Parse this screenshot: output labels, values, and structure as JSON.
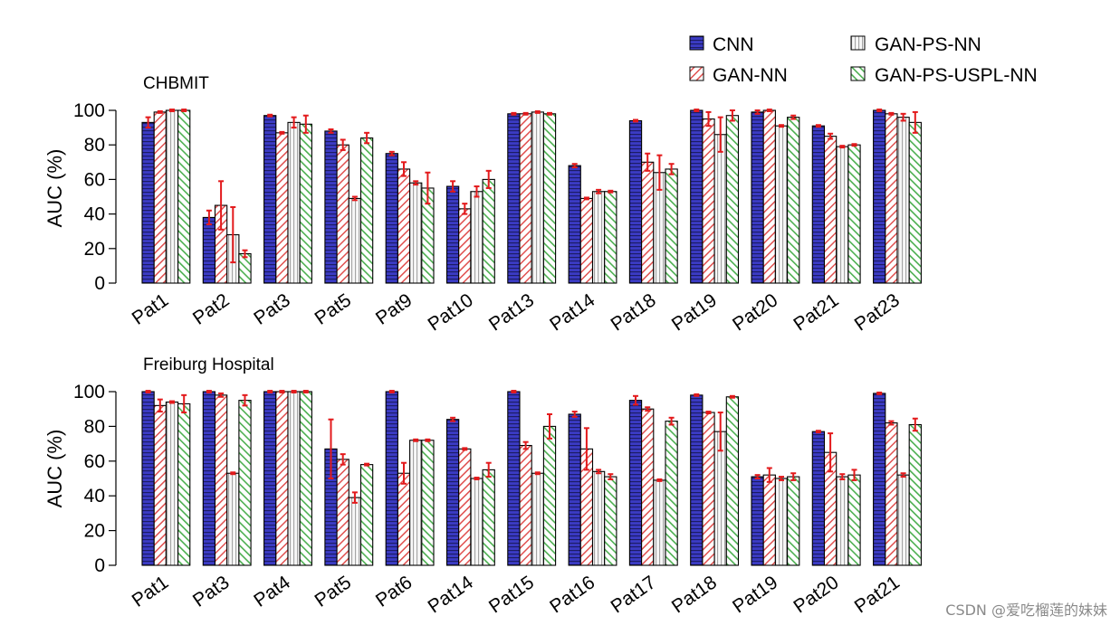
{
  "legend": [
    {
      "label": "CNN",
      "pattern": "cnn"
    },
    {
      "label": "GAN-NN",
      "pattern": "gan"
    },
    {
      "label": "GAN-PS-NN",
      "pattern": "ganps"
    },
    {
      "label": "GAN-PS-USPL-NN",
      "pattern": "uspl"
    }
  ],
  "colors": {
    "cnn": "#3b3bc4",
    "gan": "#e87a7a",
    "ganps": "#f2f2f2",
    "uspl": "#78cc78",
    "error_bar": "#e31a1c"
  },
  "watermark": "CSDN @爱吃榴莲的妹妹",
  "chart_data": [
    {
      "type": "bar",
      "title": "CHBMIT",
      "ylabel": "AUC (%)",
      "ylim": [
        0,
        100
      ],
      "yticks": [
        0,
        20,
        40,
        60,
        80,
        100
      ],
      "categories": [
        "Pat1",
        "Pat2",
        "Pat3",
        "Pat5",
        "Pat9",
        "Pat10",
        "Pat13",
        "Pat14",
        "Pat18",
        "Pat19",
        "Pat20",
        "Pat21",
        "Pat23"
      ],
      "series": [
        {
          "name": "CNN",
          "values": [
            93,
            38,
            97,
            88,
            75,
            56,
            98,
            68,
            94,
            100,
            99,
            91,
            100
          ],
          "errors": [
            3,
            4,
            0.5,
            1,
            1,
            3,
            0.5,
            1,
            0.5,
            0.5,
            1,
            0.5,
            0.5
          ]
        },
        {
          "name": "GAN-NN",
          "values": [
            99,
            45,
            87,
            80,
            66,
            43,
            98,
            49,
            70,
            95,
            100,
            85,
            98
          ],
          "errors": [
            0.5,
            14,
            0.5,
            3,
            4,
            3,
            0.5,
            0.5,
            5,
            4,
            0.5,
            1.5,
            0.5
          ]
        },
        {
          "name": "GAN-PS-NN",
          "values": [
            100,
            28,
            93,
            49,
            58,
            53,
            99,
            53,
            64,
            86,
            91,
            79,
            96
          ],
          "errors": [
            0.5,
            16,
            3,
            1,
            1,
            3,
            0.5,
            1,
            10,
            10,
            0.5,
            0.5,
            2
          ]
        },
        {
          "name": "GAN-PS-USPL-NN",
          "values": [
            100,
            17,
            92,
            84,
            55,
            60,
            98,
            53,
            66,
            97,
            96,
            80,
            93
          ],
          "errors": [
            0.5,
            2,
            5,
            3,
            9,
            5,
            0.5,
            0.5,
            3,
            3,
            1,
            0.5,
            6
          ]
        }
      ]
    },
    {
      "type": "bar",
      "title": "Freiburg Hospital",
      "ylabel": "AUC (%)",
      "ylim": [
        0,
        100
      ],
      "yticks": [
        0,
        20,
        40,
        60,
        80,
        100
      ],
      "categories": [
        "Pat1",
        "Pat3",
        "Pat4",
        "Pat5",
        "Pat6",
        "Pat14",
        "Pat15",
        "Pat16",
        "Pat17",
        "Pat18",
        "Pat19",
        "Pat20",
        "Pat21"
      ],
      "series": [
        {
          "name": "CNN",
          "values": [
            100,
            100,
            100,
            67,
            100,
            84,
            100,
            87,
            95,
            98,
            51,
            77,
            99
          ],
          "errors": [
            0.5,
            0.5,
            0.5,
            17,
            0.5,
            1,
            0.5,
            1.5,
            2.5,
            0.5,
            1,
            0.5,
            0.5
          ]
        },
        {
          "name": "GAN-NN",
          "values": [
            92,
            98,
            100,
            61,
            53,
            67,
            69,
            67,
            90,
            88,
            52,
            65,
            82
          ],
          "errors": [
            3.5,
            1,
            0.5,
            3,
            6,
            0.5,
            2,
            12,
            1,
            0.5,
            4,
            11,
            1
          ]
        },
        {
          "name": "GAN-PS-NN",
          "values": [
            94,
            53,
            100,
            39,
            72,
            50,
            53,
            54,
            49,
            77,
            50,
            51,
            52
          ],
          "errors": [
            0.5,
            0.5,
            0.5,
            3,
            0.5,
            0.5,
            0.5,
            1,
            0.5,
            11,
            1,
            1.5,
            1
          ]
        },
        {
          "name": "GAN-PS-USPL-NN",
          "values": [
            93,
            95,
            100,
            58,
            72,
            55,
            80,
            51,
            83,
            97,
            51,
            52,
            81
          ],
          "errors": [
            5,
            3,
            0.5,
            0.5,
            0.5,
            4,
            7,
            1.5,
            2,
            0.5,
            2,
            3,
            3.5
          ]
        }
      ]
    }
  ]
}
